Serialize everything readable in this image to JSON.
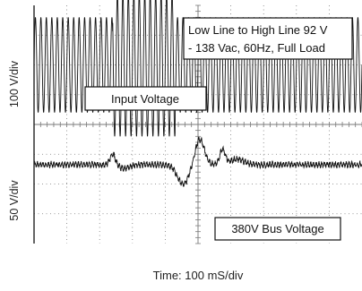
{
  "chart_data": {
    "type": "line",
    "title": "",
    "note": "Low Line to High Line 92 V - 138 Vac, 60Hz, Full Load",
    "note_lines": [
      "Low Line to High Line 92 V",
      "- 138 Vac, 60Hz, Full Load"
    ],
    "xlabel": "Time: 100 mS/div",
    "x_divisions": 10,
    "y_divisions": 8,
    "grid": true,
    "traces": [
      {
        "name": "Input Voltage",
        "scale_label": "100 V/div",
        "waveform": "60 Hz sine",
        "low_line_peak_divisions": 1.6,
        "high_line_peak_divisions": 2.4,
        "high_line_start_division": 2.4,
        "high_line_end_division": 4.3,
        "color": "#111111"
      },
      {
        "name": "380V Bus Voltage",
        "scale_label": "50 V/div",
        "nominal": "380 V",
        "ripple_divisions": 0.07,
        "disturbances": [
          {
            "time_division": 2.4,
            "delta_divisions": 0.35
          },
          {
            "time_division": 4.3,
            "delta_divisions": -0.65
          },
          {
            "time_division": 5.05,
            "delta_divisions": 0.85
          },
          {
            "time_division": 5.75,
            "delta_divisions": 0.5
          }
        ],
        "color": "#111111"
      }
    ]
  },
  "colors": {
    "grid": "#7a7a7a",
    "trace": "#111111",
    "frame": "#222222"
  }
}
